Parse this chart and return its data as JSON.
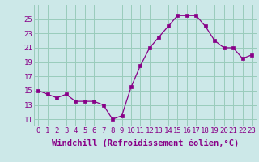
{
  "x": [
    0,
    1,
    2,
    3,
    4,
    5,
    6,
    7,
    8,
    9,
    10,
    11,
    12,
    13,
    14,
    15,
    16,
    17,
    18,
    19,
    20,
    21,
    22,
    23
  ],
  "y": [
    15.0,
    14.5,
    14.0,
    14.5,
    13.5,
    13.5,
    13.5,
    13.0,
    11.0,
    11.5,
    15.5,
    18.5,
    21.0,
    22.5,
    24.0,
    25.5,
    25.5,
    25.5,
    24.0,
    22.0,
    21.0,
    21.0,
    19.5,
    20.0
  ],
  "line_color": "#880088",
  "marker": "s",
  "marker_size": 2.5,
  "bg_color": "#cce8e8",
  "grid_color": "#99ccbb",
  "xlabel": "Windchill (Refroidissement éolien,°C)",
  "xlabel_fontsize": 7.5,
  "yticks": [
    11,
    13,
    15,
    17,
    19,
    21,
    23,
    25
  ],
  "xticks": [
    0,
    1,
    2,
    3,
    4,
    5,
    6,
    7,
    8,
    9,
    10,
    11,
    12,
    13,
    14,
    15,
    16,
    17,
    18,
    19,
    20,
    21,
    22,
    23
  ],
  "ylim": [
    10.0,
    27.0
  ],
  "xlim": [
    -0.5,
    23.5
  ],
  "tick_fontsize": 6.5,
  "tick_color": "#880088",
  "label_color": "#880088"
}
